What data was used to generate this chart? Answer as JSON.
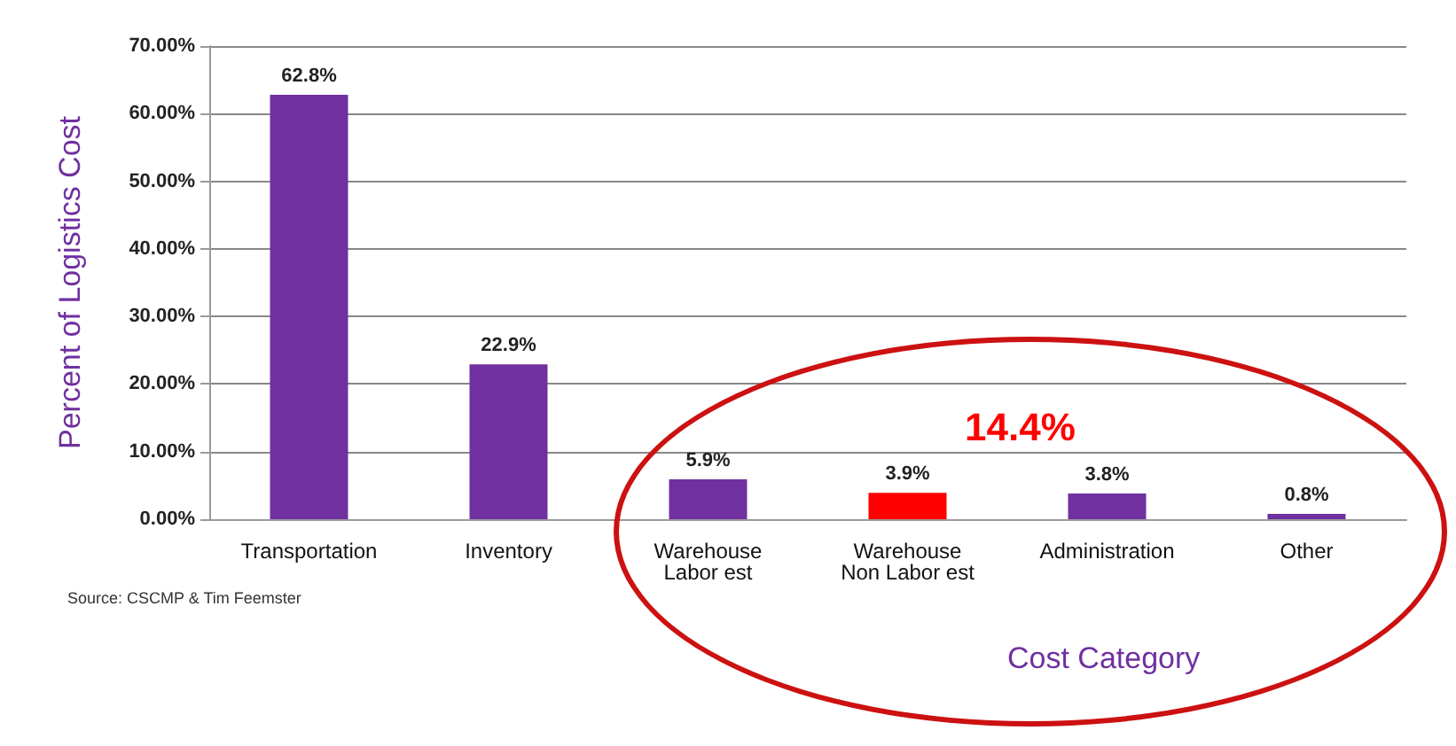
{
  "chart_data": {
    "type": "bar",
    "ylabel": "Percent of Logistics Cost",
    "xlabel": "Cost Category",
    "categories": [
      "Transportation",
      "Inventory",
      "Warehouse\nLabor est",
      "Warehouse\nNon Labor est",
      "Administration",
      "Other"
    ],
    "values": [
      62.8,
      22.9,
      5.9,
      3.9,
      3.8,
      0.8
    ],
    "colors": [
      "#7030a0",
      "#7030a0",
      "#7030a0",
      "#ff0000",
      "#7030a0",
      "#7030a0"
    ],
    "value_labels": [
      "62.8%",
      "22.9%",
      "5.9%",
      "3.9%",
      "3.8%",
      "0.8%"
    ],
    "ylim": [
      0,
      70
    ],
    "yticks": [
      {
        "value": 0,
        "label": "0.00%"
      },
      {
        "value": 10,
        "label": "10.00%"
      },
      {
        "value": 20,
        "label": "20.00%"
      },
      {
        "value": 30,
        "label": "30.00%"
      },
      {
        "value": 40,
        "label": "40.00%"
      },
      {
        "value": 50,
        "label": "50.00%"
      },
      {
        "value": 60,
        "label": "60.00%"
      },
      {
        "value": 70,
        "label": "70.00%"
      }
    ],
    "grid": "y",
    "annotations": [
      "14.4%",
      "Source: CSCMP & Tim Feemster"
    ]
  }
}
